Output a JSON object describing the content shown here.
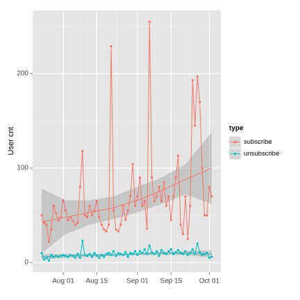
{
  "chart_data": {
    "type": "line",
    "ylabel": "User cnt",
    "x": [
      "Jul 23",
      "Jul 24",
      "Jul 25",
      "Jul 26",
      "Jul 27",
      "Jul 28",
      "Jul 29",
      "Jul 30",
      "Jul 31",
      "Aug 01",
      "Aug 02",
      "Aug 03",
      "Aug 04",
      "Aug 05",
      "Aug 06",
      "Aug 07",
      "Aug 08",
      "Aug 09",
      "Aug 10",
      "Aug 11",
      "Aug 12",
      "Aug 13",
      "Aug 14",
      "Aug 15",
      "Aug 16",
      "Aug 17",
      "Aug 18",
      "Aug 19",
      "Aug 20",
      "Aug 21",
      "Aug 22",
      "Aug 23",
      "Aug 24",
      "Aug 25",
      "Aug 26",
      "Aug 27",
      "Aug 28",
      "Aug 29",
      "Aug 30",
      "Aug 31",
      "Sep 01",
      "Sep 02",
      "Sep 03",
      "Sep 04",
      "Sep 05",
      "Sep 06",
      "Sep 07",
      "Sep 08",
      "Sep 09",
      "Sep 10",
      "Sep 11",
      "Sep 12",
      "Sep 13",
      "Sep 14",
      "Sep 15",
      "Sep 16",
      "Sep 17",
      "Sep 18",
      "Sep 19",
      "Sep 20",
      "Sep 21",
      "Sep 22",
      "Sep 23",
      "Sep 24",
      "Sep 25",
      "Sep 26",
      "Sep 27",
      "Sep 28",
      "Sep 29",
      "Sep 30",
      "Oct 01",
      "Oct 02"
    ],
    "xticks": [
      "Aug 01",
      "Aug 15",
      "Sep 01",
      "Sep 15",
      "Oct 01"
    ],
    "ylim": [
      -10.3,
      267
    ],
    "yticks": [
      0,
      100,
      200
    ],
    "grid": true,
    "legend_title": "type",
    "legend": "right",
    "series": [
      {
        "name": "subscribe",
        "color": "#F8766D",
        "values": [
          50,
          42,
          40,
          22,
          35,
          60,
          52,
          44,
          48,
          66,
          55,
          45,
          48,
          44,
          40,
          42,
          80,
          118,
          50,
          48,
          60,
          50,
          55,
          65,
          48,
          40,
          35,
          33,
          40,
          229,
          55,
          35,
          33,
          40,
          60,
          45,
          55,
          70,
          104,
          60,
          70,
          90,
          60,
          65,
          36,
          255,
          90,
          65,
          70,
          80,
          65,
          85,
          60,
          70,
          45,
          70,
          90,
          113,
          40,
          30,
          70,
          25,
          60,
          193,
          145,
          197,
          170,
          100,
          50,
          50,
          80,
          70
        ],
        "smooth": {
          "x": [
            "Jul 23",
            "Aug 02",
            "Aug 12",
            "Aug 22",
            "Sep 01",
            "Sep 11",
            "Sep 21",
            "Oct 02"
          ],
          "fit": [
            43,
            48,
            53,
            58,
            66,
            76,
            88,
            100
          ],
          "lower": [
            10,
            30,
            40,
            46,
            53,
            62,
            72,
            62
          ],
          "upper": [
            78,
            66,
            66,
            70,
            80,
            90,
            104,
            138
          ]
        }
      },
      {
        "name": "unsubscribe",
        "color": "#00BFC4",
        "values": [
          10,
          3,
          5,
          2,
          8,
          6,
          7,
          6,
          7,
          8,
          7,
          6,
          8,
          7,
          5,
          9,
          5,
          23,
          8,
          7,
          9,
          6,
          10,
          7,
          5,
          8,
          6,
          9,
          10,
          8,
          12,
          7,
          10,
          9,
          8,
          11,
          6,
          10,
          9,
          12,
          8,
          12,
          10,
          14,
          9,
          18,
          11,
          9,
          12,
          7,
          13,
          10,
          9,
          12,
          14,
          9,
          11,
          13,
          10,
          9,
          12,
          8,
          10,
          14,
          9,
          20,
          11,
          8,
          9,
          10,
          5,
          6
        ],
        "smooth": {
          "x": [
            "Jul 23",
            "Aug 02",
            "Aug 12",
            "Aug 22",
            "Sep 01",
            "Sep 11",
            "Sep 21",
            "Oct 02"
          ],
          "fit": [
            6,
            7,
            8,
            8,
            9,
            10,
            10,
            9
          ],
          "lower": [
            3,
            5,
            6,
            7,
            8,
            8,
            8,
            5
          ],
          "upper": [
            9,
            9,
            9,
            9,
            10,
            11,
            12,
            13
          ]
        }
      }
    ]
  }
}
